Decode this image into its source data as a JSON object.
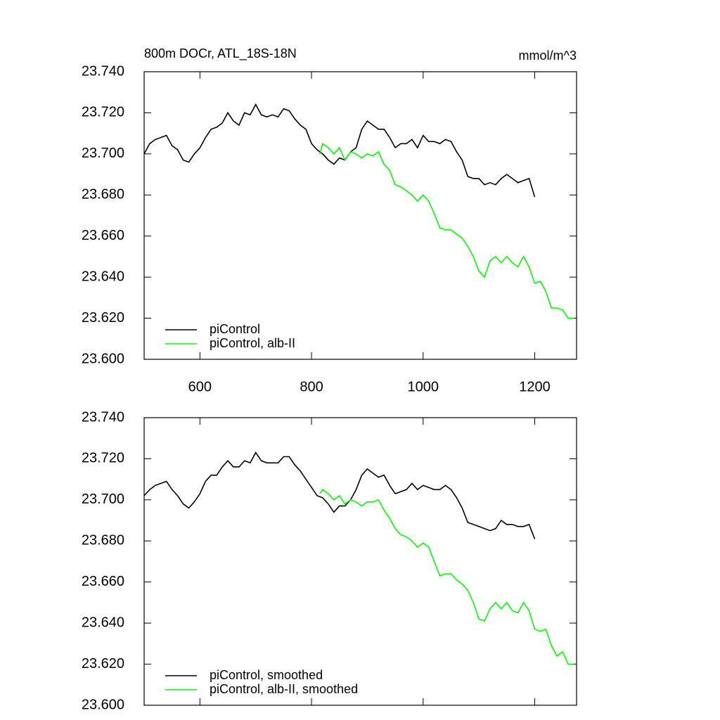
{
  "chart_data": [
    {
      "type": "line",
      "title": "800m DOCr, ATL_18S-18N",
      "units": "mmol/m^3",
      "xlim": [
        500,
        1275
      ],
      "xticks": [
        600,
        800,
        1000,
        1200
      ],
      "xtick_labels": true,
      "ylim": [
        23.6,
        23.74
      ],
      "yticks": [
        {
          "value": 23.6,
          "label": "23.600"
        },
        {
          "value": 23.62,
          "label": "23.620"
        },
        {
          "value": 23.64,
          "label": "23.640"
        },
        {
          "value": 23.66,
          "label": "23.660"
        },
        {
          "value": 23.68,
          "label": "23.680"
        },
        {
          "value": 23.7,
          "label": "23.700"
        },
        {
          "value": 23.72,
          "label": "23.720"
        },
        {
          "value": 23.74,
          "label": "23.740"
        }
      ],
      "legend": "lower left",
      "series": [
        {
          "name": "piControl",
          "color": "#000000",
          "x": [
            500,
            510,
            520,
            530,
            540,
            550,
            560,
            570,
            580,
            590,
            600,
            610,
            620,
            630,
            640,
            650,
            660,
            670,
            680,
            690,
            700,
            710,
            720,
            730,
            740,
            750,
            760,
            770,
            780,
            790,
            800,
            810,
            820,
            830,
            840,
            850,
            860,
            870,
            880,
            890,
            900,
            910,
            920,
            930,
            940,
            950,
            960,
            970,
            980,
            990,
            1000,
            1010,
            1020,
            1030,
            1040,
            1050,
            1060,
            1070,
            1080,
            1090,
            1100,
            1110,
            1120,
            1130,
            1140,
            1150,
            1160,
            1170,
            1180,
            1190,
            1200
          ],
          "values": [
            23.7,
            23.705,
            23.707,
            23.708,
            23.709,
            23.704,
            23.702,
            23.697,
            23.696,
            23.7,
            23.703,
            23.708,
            23.712,
            23.713,
            23.715,
            23.72,
            23.716,
            23.714,
            23.72,
            23.719,
            23.724,
            23.719,
            23.718,
            23.719,
            23.718,
            23.722,
            23.721,
            23.717,
            23.714,
            23.712,
            23.705,
            23.702,
            23.7,
            23.697,
            23.695,
            23.698,
            23.697,
            23.701,
            23.703,
            23.712,
            23.716,
            23.714,
            23.712,
            23.712,
            23.708,
            23.703,
            23.705,
            23.705,
            23.707,
            23.703,
            23.709,
            23.706,
            23.706,
            23.705,
            23.707,
            23.706,
            23.701,
            23.697,
            23.689,
            23.688,
            23.688,
            23.685,
            23.686,
            23.685,
            23.688,
            23.69,
            23.688,
            23.686,
            23.687,
            23.688,
            23.679
          ]
        },
        {
          "name": "piControl, alb-II",
          "color": "#00ff00",
          "x": [
            815,
            820,
            830,
            840,
            850,
            860,
            870,
            880,
            890,
            900,
            910,
            920,
            930,
            940,
            950,
            960,
            970,
            980,
            990,
            1000,
            1010,
            1020,
            1030,
            1040,
            1050,
            1060,
            1070,
            1080,
            1090,
            1100,
            1110,
            1120,
            1130,
            1140,
            1150,
            1160,
            1170,
            1180,
            1190,
            1200,
            1210,
            1220,
            1230,
            1240,
            1250,
            1260,
            1270
          ],
          "values": [
            23.7,
            23.705,
            23.703,
            23.7,
            23.703,
            23.697,
            23.701,
            23.7,
            23.698,
            23.7,
            23.699,
            23.701,
            23.695,
            23.692,
            23.685,
            23.684,
            23.682,
            23.68,
            23.677,
            23.68,
            23.677,
            23.671,
            23.664,
            23.663,
            23.663,
            23.661,
            23.659,
            23.655,
            23.65,
            23.643,
            23.64,
            23.648,
            23.65,
            23.647,
            23.65,
            23.647,
            23.645,
            23.65,
            23.645,
            23.637,
            23.638,
            23.633,
            23.625,
            23.625,
            23.624,
            23.62,
            23.62
          ]
        }
      ]
    },
    {
      "type": "line",
      "xlim": [
        500,
        1275
      ],
      "xticks": [
        600,
        800,
        1000,
        1200
      ],
      "xtick_labels": false,
      "ylim": [
        23.6,
        23.74
      ],
      "yticks": [
        {
          "value": 23.6,
          "label": "23.600"
        },
        {
          "value": 23.62,
          "label": "23.620"
        },
        {
          "value": 23.64,
          "label": "23.640"
        },
        {
          "value": 23.66,
          "label": "23.660"
        },
        {
          "value": 23.68,
          "label": "23.680"
        },
        {
          "value": 23.7,
          "label": "23.700"
        },
        {
          "value": 23.72,
          "label": "23.720"
        },
        {
          "value": 23.74,
          "label": "23.740"
        }
      ],
      "legend": "lower left",
      "series": [
        {
          "name": "piControl, smoothed",
          "color": "#000000",
          "x": [
            500,
            510,
            520,
            530,
            540,
            550,
            560,
            570,
            580,
            590,
            600,
            610,
            620,
            630,
            640,
            650,
            660,
            670,
            680,
            690,
            700,
            710,
            720,
            730,
            740,
            750,
            760,
            770,
            780,
            790,
            800,
            810,
            820,
            830,
            840,
            850,
            860,
            870,
            880,
            890,
            900,
            910,
            920,
            930,
            940,
            950,
            960,
            970,
            980,
            990,
            1000,
            1010,
            1020,
            1030,
            1040,
            1050,
            1060,
            1070,
            1080,
            1090,
            1100,
            1110,
            1120,
            1130,
            1140,
            1150,
            1160,
            1170,
            1180,
            1190,
            1200
          ],
          "values": [
            23.702,
            23.705,
            23.707,
            23.708,
            23.709,
            23.705,
            23.702,
            23.698,
            23.696,
            23.699,
            23.703,
            23.709,
            23.712,
            23.712,
            23.716,
            23.719,
            23.716,
            23.716,
            23.719,
            23.718,
            23.723,
            23.719,
            23.718,
            23.718,
            23.718,
            23.721,
            23.721,
            23.717,
            23.714,
            23.71,
            23.706,
            23.702,
            23.701,
            23.698,
            23.694,
            23.697,
            23.697,
            23.7,
            23.705,
            23.712,
            23.715,
            23.713,
            23.711,
            23.712,
            23.707,
            23.703,
            23.704,
            23.705,
            23.708,
            23.705,
            23.707,
            23.706,
            23.705,
            23.705,
            23.707,
            23.705,
            23.701,
            23.696,
            23.689,
            23.688,
            23.687,
            23.686,
            23.685,
            23.686,
            23.69,
            23.688,
            23.688,
            23.687,
            23.687,
            23.688,
            23.681
          ]
        },
        {
          "name": "piControl, alb-II, smoothed",
          "color": "#00ff00",
          "x": [
            815,
            820,
            830,
            840,
            850,
            860,
            870,
            880,
            890,
            900,
            910,
            920,
            930,
            940,
            950,
            960,
            970,
            980,
            990,
            1000,
            1010,
            1020,
            1030,
            1040,
            1050,
            1060,
            1070,
            1080,
            1090,
            1100,
            1110,
            1120,
            1130,
            1140,
            1150,
            1160,
            1170,
            1180,
            1190,
            1200,
            1210,
            1220,
            1230,
            1240,
            1250,
            1260,
            1270
          ],
          "values": [
            23.703,
            23.705,
            23.703,
            23.7,
            23.702,
            23.698,
            23.7,
            23.699,
            23.697,
            23.699,
            23.699,
            23.7,
            23.695,
            23.691,
            23.686,
            23.683,
            23.682,
            23.68,
            23.677,
            23.679,
            23.677,
            23.67,
            23.663,
            23.664,
            23.664,
            23.661,
            23.659,
            23.656,
            23.65,
            23.642,
            23.641,
            23.647,
            23.65,
            23.647,
            23.65,
            23.646,
            23.645,
            23.65,
            23.646,
            23.637,
            23.636,
            23.637,
            23.629,
            23.624,
            23.626,
            23.62,
            23.62
          ]
        }
      ]
    }
  ]
}
